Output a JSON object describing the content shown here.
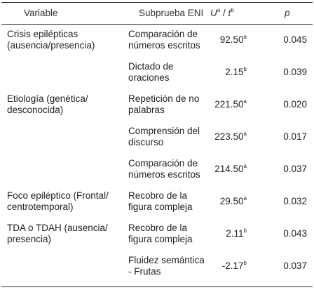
{
  "header": {
    "variable": "Variable",
    "subtest": "Subprueba ENI",
    "stat": {
      "u": "U",
      "u_sup": "a",
      "sep": "/",
      "t": "t",
      "t_sup": "b"
    },
    "p": "p"
  },
  "groups": [
    {
      "variable": [
        "Crisis epilépticas",
        "(ausencia/presencia)"
      ],
      "rows": [
        {
          "subtest": [
            "Comparación de",
            "números escritos"
          ],
          "stat": "92.50",
          "sup": "a",
          "p": "0.045"
        },
        {
          "subtest": [
            "Dictado de",
            "oraciones"
          ],
          "stat": "2.15",
          "sup": "b",
          "p": "0.039"
        }
      ]
    },
    {
      "variable": [
        "Etiología (genética/",
        "desconocida)"
      ],
      "rows": [
        {
          "subtest": [
            "Repetición de no",
            "palabras"
          ],
          "stat": "221.50",
          "sup": "a",
          "p": "0.020"
        },
        {
          "subtest": [
            "Comprensión del",
            "discurso"
          ],
          "stat": "223.50",
          "sup": "a",
          "p": "0.017"
        },
        {
          "subtest": [
            "Comparación de",
            "números escritos"
          ],
          "stat": "214.50",
          "sup": "a",
          "p": "0.037"
        }
      ]
    },
    {
      "variable": [
        "Foco epiléptico (Frontal/",
        "centrotemporal)"
      ],
      "rows": [
        {
          "subtest": [
            "Recobro de la",
            "figura compleja"
          ],
          "stat": "29.50",
          "sup": "a",
          "p": "0.032"
        }
      ]
    },
    {
      "variable": [
        "TDA o TDAH (ausencia/",
        "presencia)"
      ],
      "rows": [
        {
          "subtest": [
            "Recobro de la",
            "figura compleja"
          ],
          "stat": "2.11",
          "sup": "b",
          "p": "0.043"
        },
        {
          "subtest": [
            "Fluidez semántica",
            "- Frutas"
          ],
          "stat": "-2.17",
          "sup": "b",
          "p": "0.037"
        }
      ]
    }
  ]
}
